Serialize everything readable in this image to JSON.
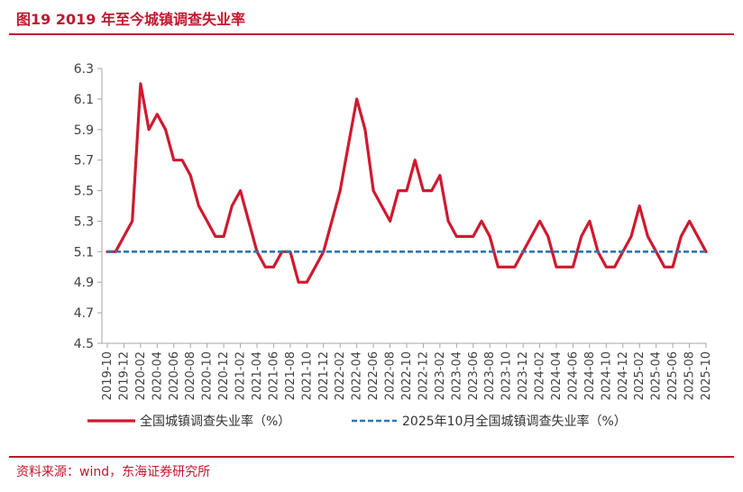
{
  "figure": {
    "title": "图19  2019 年至今城镇调查失业率",
    "source": "资料来源：wind，东海证券研究所"
  },
  "colors": {
    "brand": "#c0182e",
    "series1": "#d0192f",
    "series2": "#2e75b6",
    "axis": "#a6a6a6",
    "text": "#404040"
  },
  "chart_data": {
    "type": "line",
    "title": "",
    "xlabel": "",
    "ylabel": "",
    "ylim": [
      4.5,
      6.3
    ],
    "yticks": [
      "6.3",
      "6.1",
      "5.9",
      "5.7",
      "5.5",
      "5.3",
      "5.1",
      "4.9",
      "4.7",
      "4.5"
    ],
    "x": [
      "2019-10",
      "2019-11",
      "2019-12",
      "2020-01",
      "2020-02",
      "2020-03",
      "2020-04",
      "2020-05",
      "2020-06",
      "2020-07",
      "2020-08",
      "2020-09",
      "2020-10",
      "2020-11",
      "2020-12",
      "2021-01",
      "2021-02",
      "2021-03",
      "2021-04",
      "2021-05",
      "2021-06",
      "2021-07",
      "2021-08",
      "2021-09",
      "2021-10",
      "2021-11",
      "2021-12",
      "2022-01",
      "2022-02",
      "2022-03",
      "2022-04",
      "2022-05",
      "2022-06",
      "2022-07",
      "2022-08",
      "2022-09",
      "2022-10",
      "2022-11",
      "2022-12",
      "2023-01",
      "2023-02",
      "2023-03",
      "2023-04",
      "2023-05",
      "2023-06",
      "2023-07",
      "2023-08",
      "2023-09",
      "2023-10",
      "2023-11",
      "2023-12",
      "2024-01",
      "2024-02",
      "2024-03",
      "2024-04",
      "2024-05",
      "2024-06",
      "2024-07",
      "2024-08",
      "2024-09",
      "2024-10",
      "2024-11",
      "2024-12",
      "2025-01",
      "2025-02",
      "2025-03",
      "2025-04",
      "2025-05",
      "2025-06",
      "2025-07",
      "2025-08",
      "2025-09",
      "2025-10"
    ],
    "xticks": [
      "2019-10",
      "2019-12",
      "2020-02",
      "2020-04",
      "2020-06",
      "2020-08",
      "2020-10",
      "2020-12",
      "2021-02",
      "2021-04",
      "2021-06",
      "2021-08",
      "2021-10",
      "2021-12",
      "2022-02",
      "2022-04",
      "2022-06",
      "2022-08",
      "2022-10",
      "2022-12",
      "2023-02",
      "2023-04",
      "2023-06",
      "2023-08",
      "2023-10",
      "2023-12",
      "2024-02",
      "2024-04",
      "2024-06",
      "2024-08",
      "2024-10",
      "2024-12",
      "2025-02",
      "2025-04",
      "2025-06",
      "2025-08",
      "2025-10"
    ],
    "series": [
      {
        "name": "全国城镇调查失业率（%）",
        "style": "solid",
        "values": [
          5.1,
          5.1,
          5.2,
          5.3,
          6.2,
          5.9,
          6.0,
          5.9,
          5.7,
          5.7,
          5.6,
          5.4,
          5.3,
          5.2,
          5.2,
          5.4,
          5.5,
          5.3,
          5.1,
          5.0,
          5.0,
          5.1,
          5.1,
          4.9,
          4.9,
          5.0,
          5.1,
          5.3,
          5.5,
          5.8,
          6.1,
          5.9,
          5.5,
          5.4,
          5.3,
          5.5,
          5.5,
          5.7,
          5.5,
          5.5,
          5.6,
          5.3,
          5.2,
          5.2,
          5.2,
          5.3,
          5.2,
          5.0,
          5.0,
          5.0,
          5.1,
          5.2,
          5.3,
          5.2,
          5.0,
          5.0,
          5.0,
          5.2,
          5.3,
          5.1,
          5.0,
          5.0,
          5.1,
          5.2,
          5.4,
          5.2,
          5.1,
          5.0,
          5.0,
          5.2,
          5.3,
          5.2,
          5.1
        ]
      },
      {
        "name": "2025年10月全国城镇调查失业率（%）",
        "style": "dashed",
        "constant": 5.1
      }
    ],
    "grid": false,
    "legend": "bottom"
  }
}
